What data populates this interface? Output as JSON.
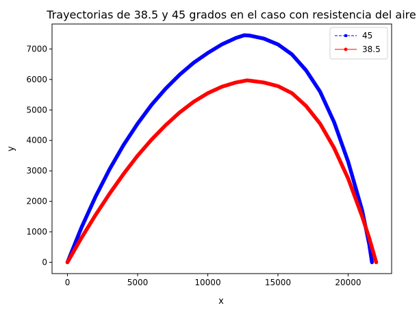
{
  "chart_data": {
    "type": "line",
    "title": "Trayectorias de 38.5 y 45 grados en el caso con resistencia del aire",
    "xlabel": "x",
    "ylabel": "y",
    "xlim": [
      -1100,
      23100
    ],
    "ylim": [
      -372,
      7820
    ],
    "xticks": [
      0,
      5000,
      10000,
      15000,
      20000
    ],
    "yticks": [
      0,
      1000,
      2000,
      3000,
      4000,
      5000,
      6000,
      7000
    ],
    "grid": false,
    "legend_position": "top-right",
    "series": [
      {
        "name": "45",
        "color": "#0000ff",
        "line_style": "dashed",
        "marker": "square",
        "x": [
          0,
          1000,
          2000,
          3000,
          4000,
          5000,
          6000,
          7000,
          8000,
          9000,
          10000,
          11000,
          12000,
          12600,
          13000,
          14000,
          15000,
          16000,
          17000,
          18000,
          19000,
          20000,
          21000,
          21500,
          21700
        ],
        "y": [
          0,
          1140,
          2150,
          3050,
          3850,
          4550,
          5170,
          5700,
          6160,
          6550,
          6870,
          7150,
          7360,
          7450,
          7440,
          7340,
          7150,
          6820,
          6300,
          5600,
          4600,
          3300,
          1700,
          600,
          0
        ]
      },
      {
        "name": "38.5",
        "color": "#ff0000",
        "line_style": "solid",
        "marker": "circle",
        "x": [
          0,
          1000,
          2000,
          3000,
          4000,
          5000,
          6000,
          7000,
          8000,
          9000,
          10000,
          11000,
          12000,
          12800,
          13000,
          14000,
          15000,
          16000,
          17000,
          18000,
          19000,
          20000,
          21000,
          21500,
          22000
        ],
        "y": [
          0,
          800,
          1550,
          2250,
          2900,
          3500,
          4030,
          4500,
          4920,
          5270,
          5550,
          5760,
          5900,
          5970,
          5960,
          5900,
          5780,
          5550,
          5130,
          4550,
          3750,
          2750,
          1500,
          800,
          0
        ]
      }
    ]
  }
}
